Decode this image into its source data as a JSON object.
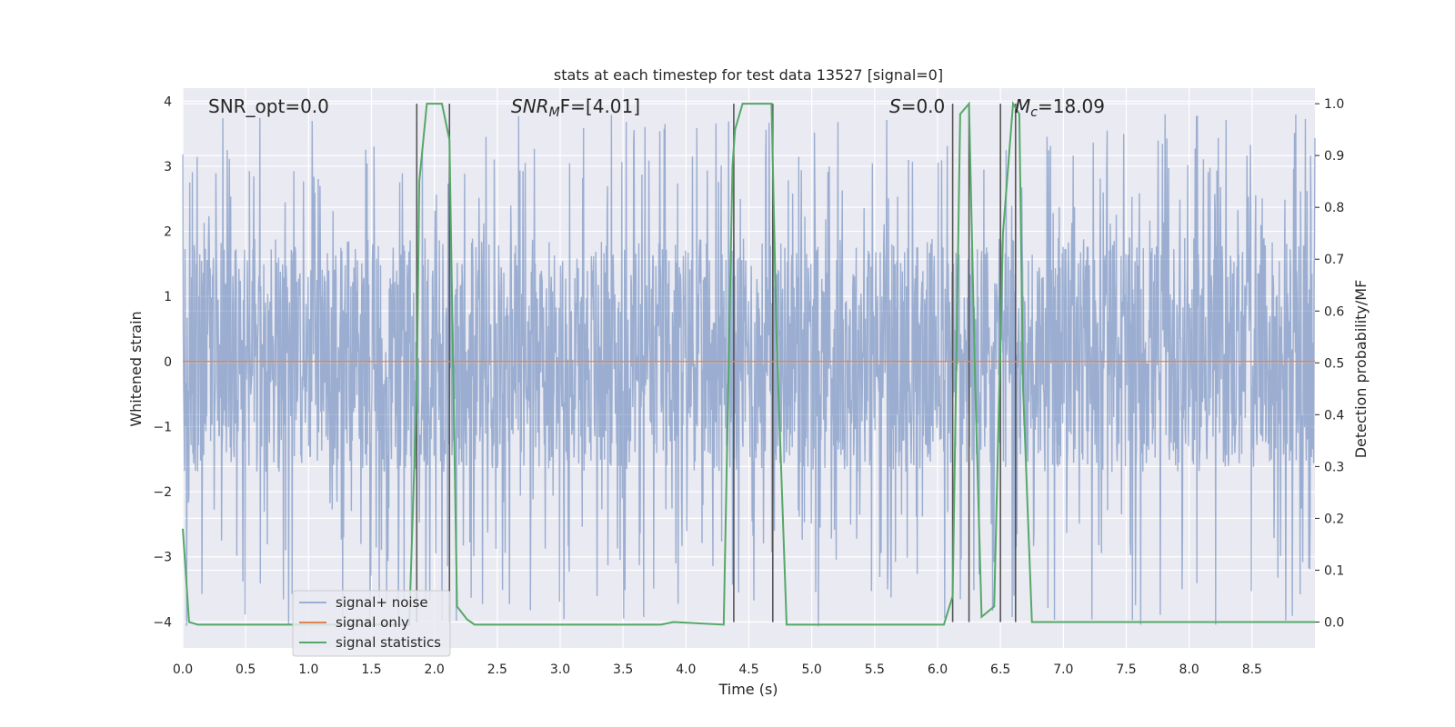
{
  "chart_data": {
    "type": "line",
    "title": "stats at each timestep for test data 13527 [signal=0]",
    "xlabel": "Time (s)",
    "ylabel": "Whitened strain",
    "ylabel_right": "Detection probability/MF",
    "xlim": [
      0,
      9
    ],
    "ylim": [
      -4.4,
      4.2
    ],
    "ylim_right": [
      -0.05,
      1.03
    ],
    "x_ticks": [
      "0.0",
      "0.5",
      "1.0",
      "1.5",
      "2.0",
      "2.5",
      "3.0",
      "3.5",
      "4.0",
      "4.5",
      "5.0",
      "5.5",
      "6.0",
      "6.5",
      "7.0",
      "7.5",
      "8.0",
      "8.5"
    ],
    "y_ticks": [
      "4",
      "3",
      "2",
      "1",
      "0",
      "−1",
      "−2",
      "−3",
      "−4"
    ],
    "y_ticks_right": [
      "1.0",
      "0.9",
      "0.8",
      "0.7",
      "0.6",
      "0.5",
      "0.4",
      "0.3",
      "0.2",
      "0.1",
      "0.0"
    ],
    "grid": true,
    "legend_position": "lower-left",
    "annotations": {
      "snr_opt": "SNR_opt=0.0",
      "snr_mf_name": "SNR",
      "snr_mf_sub": "M",
      "snr_mf_rest": "F=[4.01]",
      "s_name": "S",
      "s_rest": "=0.0",
      "mc_name": "M",
      "mc_sub": "c",
      "mc_rest": "=18.09"
    },
    "series": [
      {
        "name": "signal+ noise",
        "color": "#4c72b0",
        "amplitude_range": [
          -4.1,
          3.8
        ],
        "typical_band": [
          -1.7,
          1.9
        ]
      },
      {
        "name": "signal only",
        "color": "#dd8452",
        "value": 0
      },
      {
        "name": "signal statistics",
        "color": "#55a868",
        "axis": "right",
        "x": [
          0.0,
          0.05,
          0.12,
          1.8,
          1.86,
          1.88,
          1.94,
          2.06,
          2.12,
          2.18,
          2.26,
          2.32,
          3.8,
          3.9,
          4.3,
          4.37,
          4.39,
          4.45,
          4.68,
          4.72,
          4.8,
          6.05,
          6.12,
          6.18,
          6.25,
          6.3,
          6.35,
          6.45,
          6.52,
          6.6,
          6.65,
          6.68,
          6.75,
          9.0
        ],
        "values": [
          0.18,
          0.0,
          -0.005,
          -0.005,
          0.45,
          0.85,
          1.0,
          1.0,
          0.93,
          0.03,
          0.005,
          -0.005,
          -0.005,
          0.0,
          -0.005,
          0.88,
          0.95,
          1.0,
          1.0,
          0.55,
          -0.005,
          -0.005,
          0.05,
          0.98,
          1.0,
          0.45,
          0.01,
          0.03,
          0.75,
          1.0,
          0.98,
          0.45,
          0.0,
          0.0
        ]
      }
    ],
    "vertical_lines": [
      1.86,
      2.12,
      4.38,
      4.69,
      6.12,
      6.25,
      6.5,
      6.62
    ],
    "vertical_line_color": "#555555"
  }
}
